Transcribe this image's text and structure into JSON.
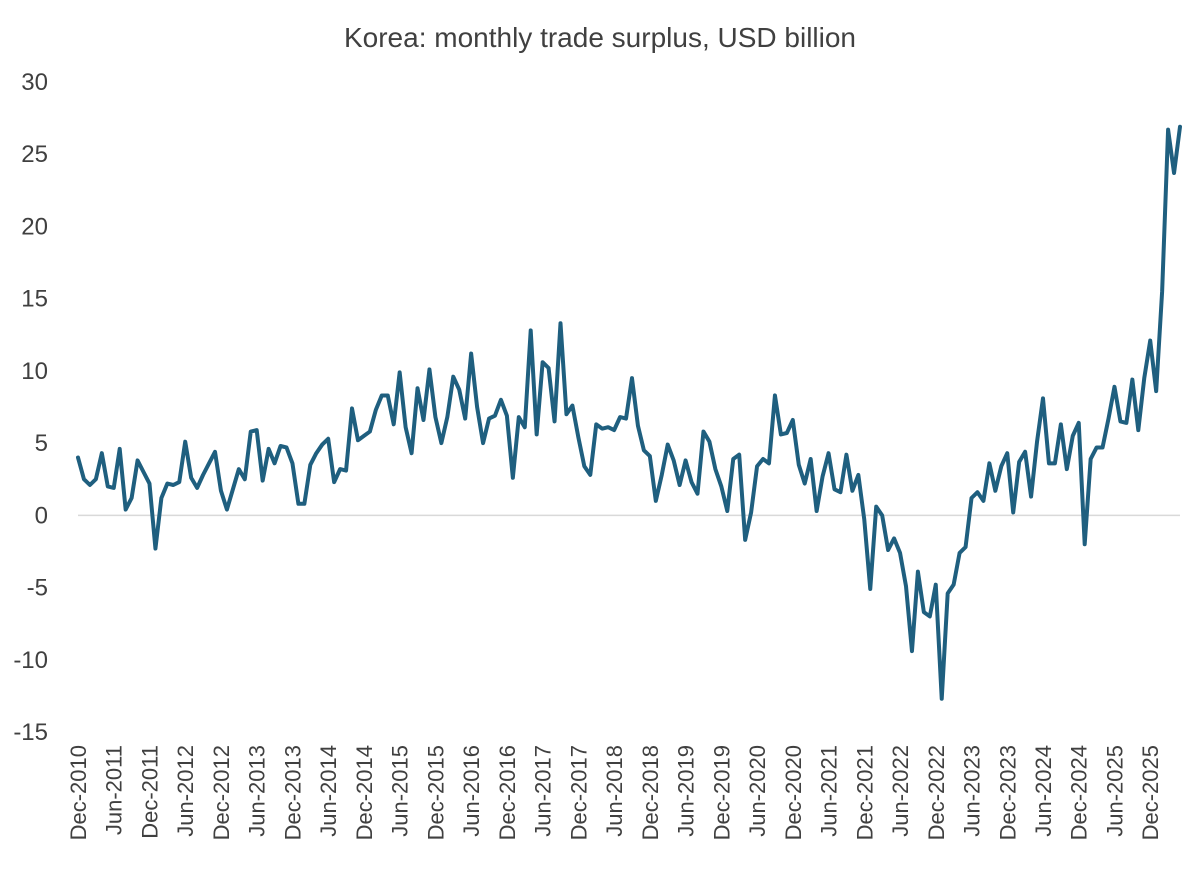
{
  "chart_data": {
    "type": "line",
    "title": "Korea: monthly trade surplus, USD billion",
    "xlabel": "",
    "ylabel": "",
    "ylim": [
      -15,
      30
    ],
    "y_ticks": [
      "30",
      "25",
      "20",
      "15",
      "10",
      "5",
      "0",
      "-5",
      "-10",
      "-15"
    ],
    "x_tick_labels": [
      "Dec-2010",
      "Jun-2011",
      "Dec-2011",
      "Jun-2012",
      "Dec-2012",
      "Jun-2013",
      "Dec-2013",
      "Jun-2014",
      "Dec-2014",
      "Jun-2015",
      "Dec-2015",
      "Jun-2016",
      "Dec-2016",
      "Jun-2017",
      "Dec-2017",
      "Jun-2018",
      "Dec-2018",
      "Jun-2019",
      "Dec-2019",
      "Jun-2020",
      "Dec-2020",
      "Jun-2021",
      "Dec-2021",
      "Jun-2022",
      "Dec-2022",
      "Jun-2023",
      "Dec-2023",
      "Jun-2024",
      "Dec-2024",
      "Jun-2025",
      "Dec-2025"
    ],
    "grid": false,
    "legend": "none",
    "line_color": "#1f5f7f",
    "zero_line_color": "#d9d9d9",
    "x_start": "Dec-2010",
    "x_frequency": "monthly",
    "series": [
      {
        "values": [
          4.0,
          2.5,
          2.1,
          2.5,
          4.3,
          2.0,
          1.9,
          4.6,
          0.4,
          1.2,
          3.8,
          3.0,
          2.2,
          -2.3,
          1.2,
          2.2,
          2.1,
          2.3,
          5.1,
          2.6,
          1.9,
          2.8,
          3.6,
          4.4,
          1.7,
          0.4,
          1.8,
          3.2,
          2.5,
          5.8,
          5.9,
          2.4,
          4.6,
          3.6,
          4.8,
          4.7,
          3.6,
          0.8,
          0.8,
          3.5,
          4.3,
          4.9,
          5.3,
          2.3,
          3.2,
          3.1,
          7.4,
          5.2,
          5.5,
          5.8,
          7.3,
          8.3,
          8.3,
          6.3,
          9.9,
          6.1,
          4.3,
          8.8,
          6.6,
          10.1,
          6.8,
          5.0,
          6.8,
          9.6,
          8.7,
          6.7,
          11.2,
          7.5,
          5.0,
          6.7,
          6.9,
          8.0,
          6.9,
          2.6,
          6.8,
          6.1,
          12.8,
          5.6,
          10.6,
          10.2,
          6.5,
          13.3,
          7.0,
          7.6,
          5.4,
          3.4,
          2.8,
          6.3,
          6.0,
          6.1,
          5.9,
          6.8,
          6.7,
          9.5,
          6.2,
          4.5,
          4.1,
          1.0,
          2.8,
          4.9,
          3.8,
          2.1,
          3.8,
          2.3,
          1.5,
          5.8,
          5.1,
          3.2,
          2.0,
          0.3,
          3.9,
          4.2,
          -1.7,
          0.2,
          3.4,
          3.9,
          3.6,
          8.3,
          5.6,
          5.7,
          6.6,
          3.5,
          2.2,
          3.9,
          0.3,
          2.7,
          4.3,
          1.8,
          1.6,
          4.2,
          1.7,
          2.8,
          -0.3,
          -5.1,
          0.6,
          0.0,
          -2.4,
          -1.6,
          -2.6,
          -4.9,
          -9.4,
          -3.9,
          -6.7,
          -7.0,
          -4.8,
          -12.7,
          -5.4,
          -4.8,
          -2.6,
          -2.2,
          1.2,
          1.6,
          1.0,
          3.6,
          1.7,
          3.4,
          4.3,
          0.2,
          3.7,
          4.4,
          1.3,
          5.1,
          8.1,
          3.6,
          3.6,
          6.3,
          3.2,
          5.5,
          6.4,
          -2.0,
          3.9,
          4.7,
          4.7,
          6.7,
          8.9,
          6.5,
          6.4,
          9.4,
          5.9,
          9.5,
          12.1,
          8.6,
          15.5,
          26.7,
          23.7,
          26.9
        ]
      }
    ]
  }
}
